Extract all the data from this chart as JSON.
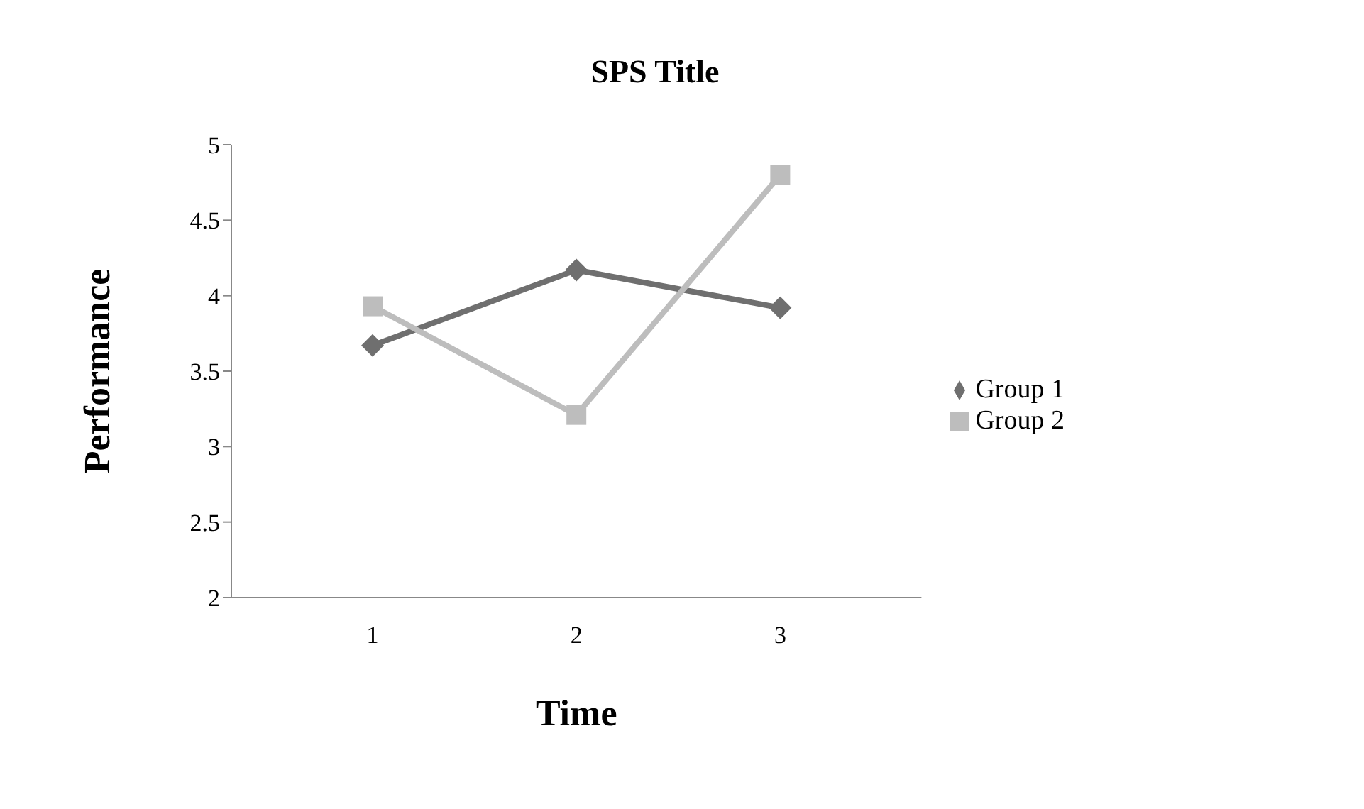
{
  "chart_data": {
    "type": "line",
    "title": "SPS Title",
    "xlabel": "Time",
    "ylabel": "Performance",
    "categories": [
      "1",
      "2",
      "3"
    ],
    "series": [
      {
        "name": "Group 1",
        "color": "#6f6f6f",
        "marker": "diamond",
        "values": [
          3.67,
          4.17,
          3.92
        ]
      },
      {
        "name": "Group 2",
        "color": "#bdbdbd",
        "marker": "square",
        "values": [
          3.93,
          3.21,
          4.8
        ]
      }
    ],
    "ylim": [
      2,
      5
    ],
    "yticks": [
      2,
      2.5,
      3,
      3.5,
      4,
      4.5,
      5
    ],
    "grid": false,
    "legend": "right"
  }
}
